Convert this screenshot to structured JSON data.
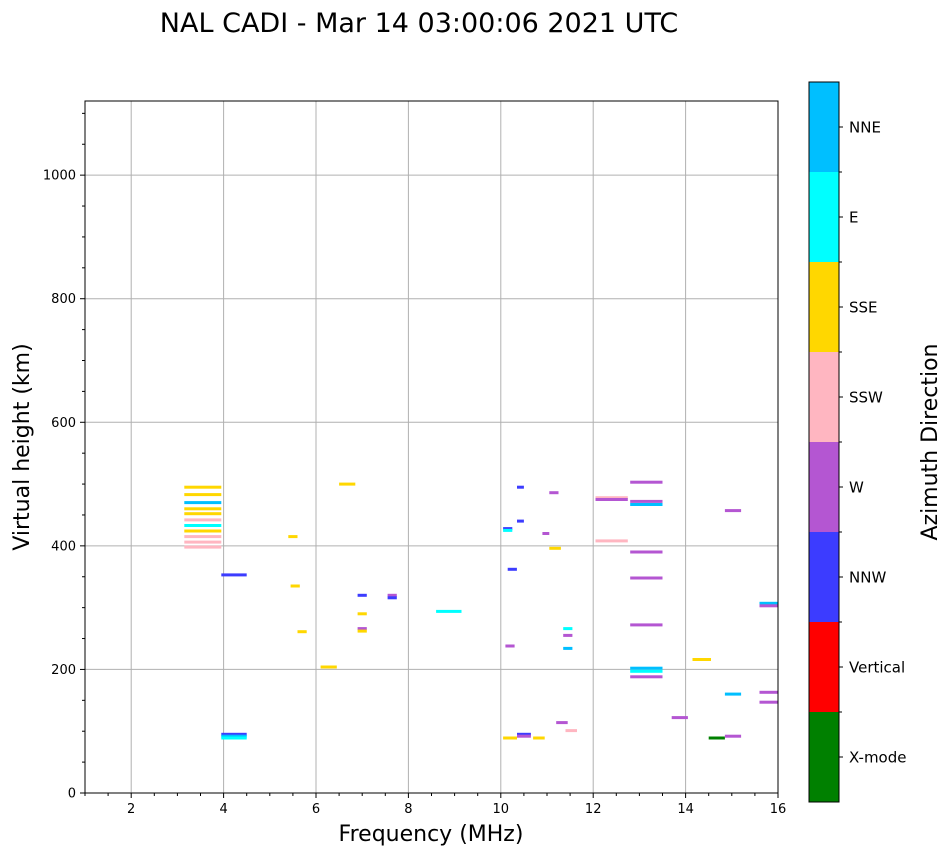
{
  "chart_data": {
    "type": "scatter",
    "title": "NAL CADI - Mar 14 03:00:06 2021 UTC",
    "xlabel": "Frequency (MHz)",
    "ylabel": "Virtual height (km)",
    "xlim": [
      1,
      16
    ],
    "ylim": [
      0,
      1120
    ],
    "xticks": [
      2,
      4,
      6,
      8,
      10,
      12,
      14,
      16
    ],
    "yticks": [
      0,
      200,
      400,
      600,
      800,
      1000
    ],
    "grid": true,
    "colorbar": {
      "label": "Azimuth Direction",
      "categories": [
        {
          "name": "X-mode",
          "color": "#008000"
        },
        {
          "name": "Vertical",
          "color": "#ff0000"
        },
        {
          "name": "NNW",
          "color": "#3c3cff"
        },
        {
          "name": "W",
          "color": "#b456d2"
        },
        {
          "name": "SSW",
          "color": "#ffb6c1"
        },
        {
          "name": "SSE",
          "color": "#ffd700"
        },
        {
          "name": "E",
          "color": "#00ffff"
        },
        {
          "name": "NNE",
          "color": "#00bfff"
        }
      ]
    },
    "echoes": [
      {
        "f0": 12.8,
        "f1": 13.5,
        "h": 503,
        "c": "W"
      },
      {
        "f0": 12.8,
        "f1": 13.5,
        "h": 472,
        "c": "W"
      },
      {
        "f0": 12.8,
        "f1": 13.5,
        "h": 467,
        "c": "NNE"
      },
      {
        "f0": 12.8,
        "f1": 13.5,
        "h": 390,
        "c": "W"
      },
      {
        "f0": 12.8,
        "f1": 13.5,
        "h": 348,
        "c": "W"
      },
      {
        "f0": 12.8,
        "f1": 13.5,
        "h": 272,
        "c": "W"
      },
      {
        "f0": 12.8,
        "f1": 13.5,
        "h": 202,
        "c": "NNE"
      },
      {
        "f0": 12.8,
        "f1": 13.5,
        "h": 197,
        "c": "E"
      },
      {
        "f0": 12.8,
        "f1": 13.5,
        "h": 188,
        "c": "W"
      },
      {
        "f0": 12.05,
        "f1": 12.75,
        "h": 478,
        "c": "SSW"
      },
      {
        "f0": 12.05,
        "f1": 12.75,
        "h": 475,
        "c": "W"
      },
      {
        "f0": 12.05,
        "f1": 12.75,
        "h": 408,
        "c": "SSW"
      },
      {
        "f0": 8.6,
        "f1": 9.15,
        "h": 294,
        "c": "E"
      },
      {
        "f0": 3.95,
        "f1": 4.5,
        "h": 353,
        "c": "NNW"
      },
      {
        "f0": 3.95,
        "f1": 4.5,
        "h": 95,
        "c": "NNW"
      },
      {
        "f0": 3.95,
        "f1": 4.5,
        "h": 92,
        "c": "NNE"
      },
      {
        "f0": 3.95,
        "f1": 4.5,
        "h": 89,
        "c": "E"
      },
      {
        "f0": 6.5,
        "f1": 6.85,
        "h": 500,
        "c": "SSE"
      },
      {
        "f0": 6.1,
        "f1": 6.45,
        "h": 204,
        "c": "SSE"
      },
      {
        "f0": 5.4,
        "f1": 5.6,
        "h": 415,
        "c": "SSE"
      },
      {
        "f0": 5.45,
        "f1": 5.65,
        "h": 335,
        "c": "SSE"
      },
      {
        "f0": 5.6,
        "f1": 5.8,
        "h": 261,
        "c": "SSE"
      },
      {
        "f0": 6.9,
        "f1": 7.1,
        "h": 320,
        "c": "NNW"
      },
      {
        "f0": 6.9,
        "f1": 7.1,
        "h": 290,
        "c": "SSE"
      },
      {
        "f0": 6.9,
        "f1": 7.1,
        "h": 266,
        "c": "W"
      },
      {
        "f0": 6.9,
        "f1": 7.1,
        "h": 262,
        "c": "SSE"
      },
      {
        "f0": 7.55,
        "f1": 7.75,
        "h": 320,
        "c": "W"
      },
      {
        "f0": 7.55,
        "f1": 7.75,
        "h": 316,
        "c": "NNW"
      },
      {
        "f0": 10.05,
        "f1": 10.35,
        "h": 89,
        "c": "SSE"
      },
      {
        "f0": 10.35,
        "f1": 10.65,
        "h": 95,
        "c": "NNW"
      },
      {
        "f0": 10.35,
        "f1": 10.65,
        "h": 92,
        "c": "W"
      },
      {
        "f0": 10.7,
        "f1": 10.95,
        "h": 89,
        "c": "SSE"
      },
      {
        "f0": 10.1,
        "f1": 10.3,
        "h": 238,
        "c": "W"
      },
      {
        "f0": 10.15,
        "f1": 10.35,
        "h": 362,
        "c": "NNW"
      },
      {
        "f0": 10.05,
        "f1": 10.25,
        "h": 428,
        "c": "NNW"
      },
      {
        "f0": 10.05,
        "f1": 10.25,
        "h": 425,
        "c": "E"
      },
      {
        "f0": 10.35,
        "f1": 10.5,
        "h": 495,
        "c": "NNW"
      },
      {
        "f0": 10.35,
        "f1": 10.5,
        "h": 440,
        "c": "NNW"
      },
      {
        "f0": 11.2,
        "f1": 11.45,
        "h": 114,
        "c": "W"
      },
      {
        "f0": 11.4,
        "f1": 11.65,
        "h": 101,
        "c": "SSW"
      },
      {
        "f0": 11.35,
        "f1": 11.55,
        "h": 234,
        "c": "NNE"
      },
      {
        "f0": 11.35,
        "f1": 11.55,
        "h": 266,
        "c": "E"
      },
      {
        "f0": 11.35,
        "f1": 11.55,
        "h": 255,
        "c": "W"
      },
      {
        "f0": 11.05,
        "f1": 11.3,
        "h": 396,
        "c": "SSE"
      },
      {
        "f0": 10.9,
        "f1": 11.05,
        "h": 420,
        "c": "W"
      },
      {
        "f0": 11.05,
        "f1": 11.25,
        "h": 486,
        "c": "W"
      },
      {
        "f0": 13.7,
        "f1": 14.05,
        "h": 122,
        "c": "W"
      },
      {
        "f0": 14.15,
        "f1": 14.55,
        "h": 216,
        "c": "SSE"
      },
      {
        "f0": 14.5,
        "f1": 14.85,
        "h": 89,
        "c": "X-mode"
      },
      {
        "f0": 14.85,
        "f1": 15.2,
        "h": 92,
        "c": "W"
      },
      {
        "f0": 14.85,
        "f1": 15.2,
        "h": 160,
        "c": "NNE"
      },
      {
        "f0": 14.85,
        "f1": 15.2,
        "h": 457,
        "c": "W"
      },
      {
        "f0": 15.6,
        "f1": 16.0,
        "h": 163,
        "c": "W"
      },
      {
        "f0": 15.6,
        "f1": 16.0,
        "h": 147,
        "c": "W"
      },
      {
        "f0": 15.6,
        "f1": 16.0,
        "h": 307,
        "c": "NNE"
      },
      {
        "f0": 15.6,
        "f1": 16.0,
        "h": 303,
        "c": "W"
      },
      {
        "f0": 3.15,
        "f1": 3.95,
        "h": 495,
        "c": "SSE"
      },
      {
        "f0": 3.15,
        "f1": 3.95,
        "h": 483,
        "c": "SSE"
      },
      {
        "f0": 3.15,
        "f1": 3.95,
        "h": 470,
        "c": "NNE"
      },
      {
        "f0": 3.15,
        "f1": 3.95,
        "h": 460,
        "c": "SSE"
      },
      {
        "f0": 3.15,
        "f1": 3.95,
        "h": 452,
        "c": "SSE"
      },
      {
        "f0": 3.15,
        "f1": 3.95,
        "h": 442,
        "c": "SSW"
      },
      {
        "f0": 3.15,
        "f1": 3.95,
        "h": 433,
        "c": "E"
      },
      {
        "f0": 3.15,
        "f1": 3.95,
        "h": 424,
        "c": "SSE"
      },
      {
        "f0": 3.15,
        "f1": 3.95,
        "h": 415,
        "c": "SSW"
      },
      {
        "f0": 3.15,
        "f1": 3.95,
        "h": 406,
        "c": "SSW"
      },
      {
        "f0": 3.15,
        "f1": 3.95,
        "h": 398,
        "c": "SSW"
      }
    ]
  }
}
